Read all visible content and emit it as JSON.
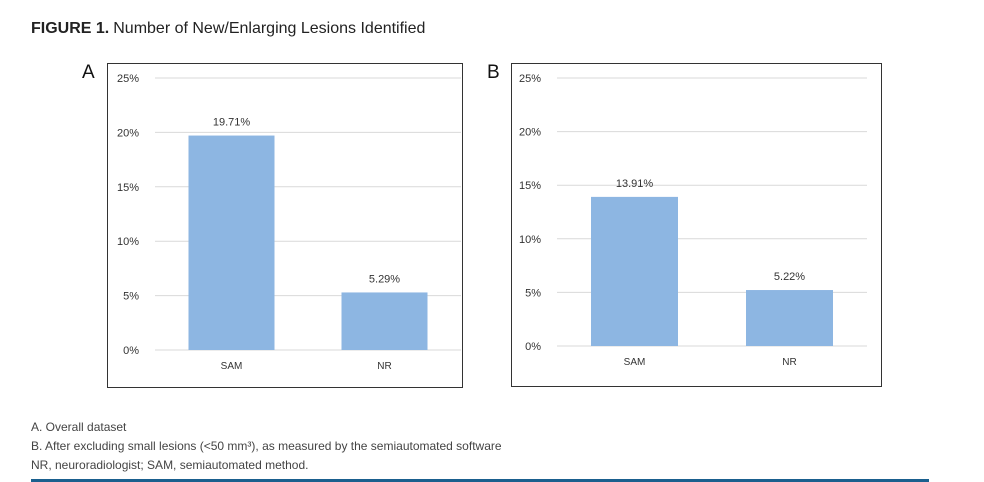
{
  "figure": {
    "label": "FIGURE 1.",
    "title": "Number of New/Enlarging Lesions Identified"
  },
  "panels": [
    {
      "letter": "A"
    },
    {
      "letter": "B"
    }
  ],
  "chart_data": [
    {
      "panel": "A",
      "type": "bar",
      "categories": [
        "SAM",
        "NR"
      ],
      "values": [
        19.71,
        5.29
      ],
      "data_labels": [
        "19.71%",
        "5.29%"
      ],
      "ylim": [
        0,
        25
      ],
      "yticks": [
        0,
        5,
        10,
        15,
        20,
        25
      ],
      "ytick_labels": [
        "0%",
        "5%",
        "10%",
        "15%",
        "20%",
        "25%"
      ],
      "grid": true,
      "bar_color": "#8db6e2",
      "title": "",
      "xlabel": "",
      "ylabel": ""
    },
    {
      "panel": "B",
      "type": "bar",
      "categories": [
        "SAM",
        "NR"
      ],
      "values": [
        13.91,
        5.22
      ],
      "data_labels": [
        "13.91%",
        "5.22%"
      ],
      "ylim": [
        0,
        25
      ],
      "yticks": [
        0,
        5,
        10,
        15,
        20,
        25
      ],
      "ytick_labels": [
        "0%",
        "5%",
        "10%",
        "15%",
        "20%",
        "25%"
      ],
      "grid": true,
      "bar_color": "#8db6e2",
      "title": "",
      "xlabel": "",
      "ylabel": ""
    }
  ],
  "notes": [
    "A. Overall dataset",
    "B. After excluding small lesions (<50 mm³), as measured by the semiautomated software",
    "NR, neuroradiologist; SAM, semiautomated method."
  ],
  "colors": {
    "bar": "#8db6e2",
    "rule": "#1a5f8e"
  }
}
